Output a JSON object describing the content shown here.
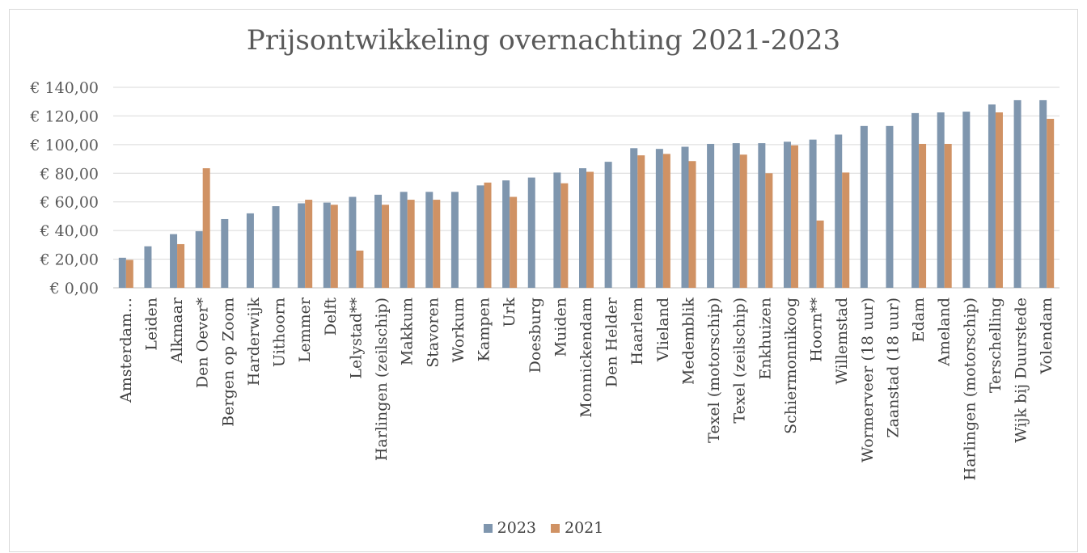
{
  "chart_data": {
    "type": "bar",
    "title": "Prijsontwikkeling overnachting 2021-2023",
    "xlabel": "",
    "ylabel": "",
    "ylim": [
      0,
      140
    ],
    "y_ticks": [
      "€ 0,00",
      "€ 20,00",
      "€ 40,00",
      "€ 60,00",
      "€ 80,00",
      "€ 100,00",
      "€ 120,00",
      "€ 140,00"
    ],
    "y_tick_values": [
      0,
      20,
      40,
      60,
      80,
      100,
      120,
      140
    ],
    "grid": true,
    "legend_position": "bottom",
    "categories": [
      "Amsterdam…",
      "Leiden",
      "Alkmaar",
      "Den Oever*",
      "Bergen op Zoom",
      "Harderwijk",
      "Uithoorn",
      "Lemmer",
      "Delft",
      "Lelystad**",
      "Harlingen (zeilschip)",
      "Makkum",
      "Stavoren",
      "Workum",
      "Kampen",
      "Urk",
      "Doesburg",
      "Muiden",
      "Monnickendam",
      "Den Helder",
      "Haarlem",
      "Vlieland",
      "Medemblik",
      "Texel (motorschip)",
      "Texel (zeilschip)",
      "Enkhuizen",
      "Schiermonnikoog",
      "Hoorn**",
      "Willemstad",
      "Wormerveer (18 uur)",
      "Zaanstad (18 uur)",
      "Edam",
      "Ameland",
      "Harlingen (motorschip)",
      "Terschelling",
      "Wijk bij Duurstede",
      "Volendam"
    ],
    "series": [
      {
        "name": "2023",
        "color": "#7f96ae",
        "values": [
          21,
          29,
          37.5,
          39.5,
          48,
          52,
          57,
          59,
          59.5,
          63.5,
          65,
          67,
          67,
          67,
          71.5,
          75,
          77,
          80.5,
          83.5,
          88,
          97.5,
          97,
          98.5,
          100.5,
          101,
          101,
          102,
          103.5,
          107,
          113,
          113,
          122,
          122.5,
          123,
          128,
          131,
          131
        ]
      },
      {
        "name": "2021",
        "color": "#d09264",
        "values": [
          19.5,
          null,
          30.5,
          83.5,
          null,
          null,
          null,
          61.5,
          58,
          26,
          58,
          61.5,
          61.5,
          null,
          73.5,
          63.5,
          null,
          73,
          81,
          null,
          92.5,
          93.5,
          88.5,
          null,
          93,
          80,
          99.5,
          47,
          80.5,
          null,
          null,
          100.5,
          100.5,
          null,
          122.5,
          null,
          118
        ]
      }
    ]
  }
}
